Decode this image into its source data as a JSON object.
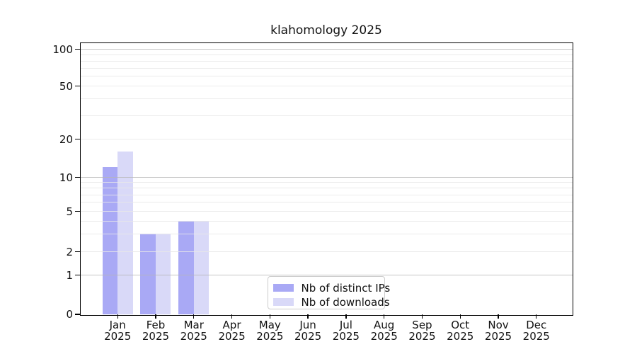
{
  "title": "klahomology 2025",
  "chart_data": {
    "type": "bar",
    "title": "klahomology 2025",
    "categories": [
      "Jan 2025",
      "Feb 2025",
      "Mar 2025",
      "Apr 2025",
      "May 2025",
      "Jun 2025",
      "Jul 2025",
      "Aug 2025",
      "Sep 2025",
      "Oct 2025",
      "Nov 2025",
      "Dec 2025"
    ],
    "series": [
      {
        "name": "Nb of distinct IPs",
        "color": "#a9a9f5",
        "values": [
          12,
          3,
          4,
          0,
          0,
          0,
          0,
          0,
          0,
          0,
          0,
          0
        ]
      },
      {
        "name": "Nb of downloads",
        "color": "#d9d9f8",
        "values": [
          16,
          3,
          4,
          0,
          0,
          0,
          0,
          0,
          0,
          0,
          0,
          0
        ]
      }
    ],
    "xlabel": "",
    "ylabel": "",
    "y_axis": {
      "scale": "log (with zero baseline)",
      "tick_labels": [
        0,
        1,
        2,
        5,
        10,
        20,
        50,
        100
      ],
      "major_gridlines": [
        1,
        10,
        100
      ],
      "minor_gridlines": [
        2,
        3,
        4,
        5,
        6,
        7,
        8,
        9,
        20,
        30,
        40,
        50,
        60,
        70,
        80,
        90
      ],
      "ylim": [
        0,
        110
      ]
    },
    "grid": true,
    "legend": {
      "position": "lower center",
      "entries": [
        "Nb of distinct IPs",
        "Nb of downloads"
      ]
    },
    "colors": {
      "major_grid": "#c4c4c4",
      "minor_grid": "#eaeaea",
      "spine": "#000000",
      "text": "#111111",
      "background": "#ffffff"
    }
  }
}
